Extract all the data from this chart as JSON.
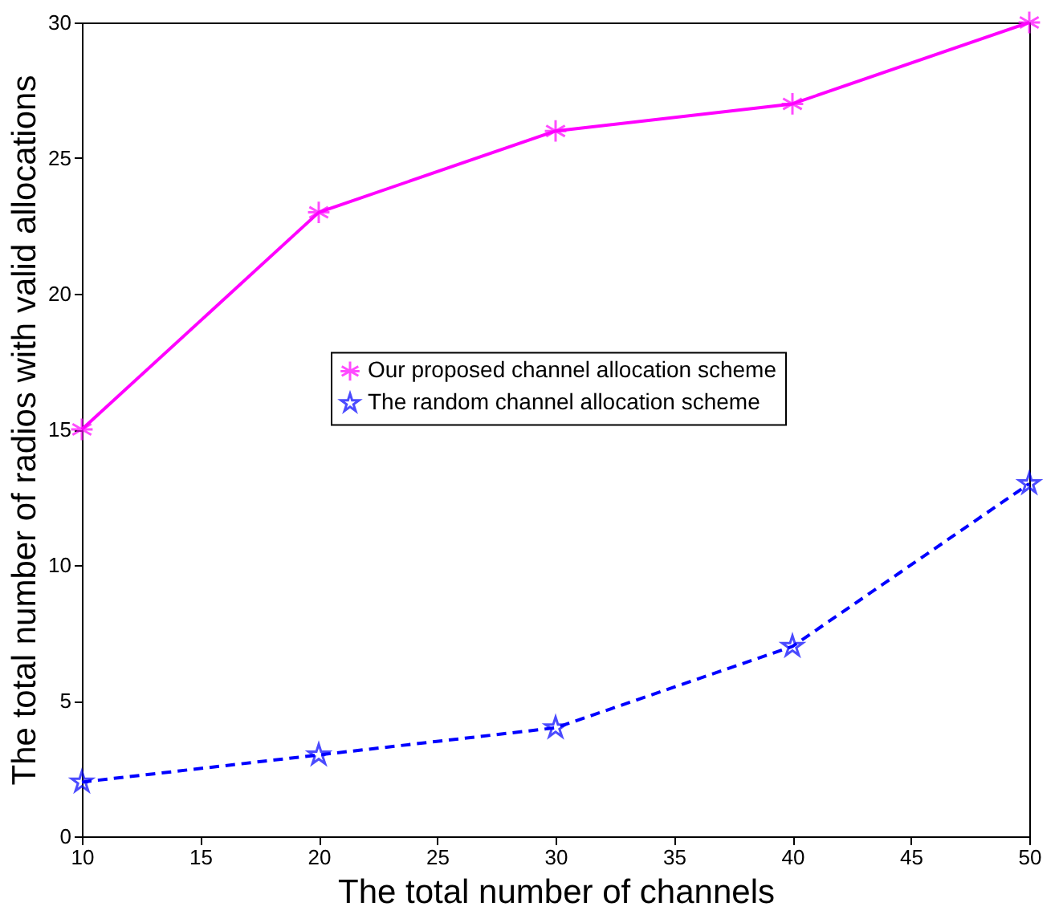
{
  "chart_data": {
    "type": "line",
    "xlabel": "The total number of channels",
    "ylabel": "The total number of radios with valid allocations",
    "x": [
      10,
      20,
      30,
      40,
      50
    ],
    "series": [
      {
        "name": "Our proposed channel allocation scheme",
        "color": "#ff00ff",
        "values": [
          15,
          23,
          26,
          27,
          30
        ],
        "marker": "cross",
        "line_style": "solid"
      },
      {
        "name": "The random channel allocation scheme",
        "color": "#0000ff",
        "values": [
          2,
          3,
          4,
          7,
          13
        ],
        "marker": "star",
        "line_style": "dashed"
      }
    ],
    "xlim": [
      10,
      50
    ],
    "xticks": [
      10,
      15,
      20,
      25,
      30,
      35,
      40,
      45,
      50
    ],
    "ylim": [
      0,
      30
    ],
    "yticks": [
      0,
      5,
      10,
      15,
      20,
      25,
      30
    ],
    "grid": false,
    "legend": "right"
  }
}
